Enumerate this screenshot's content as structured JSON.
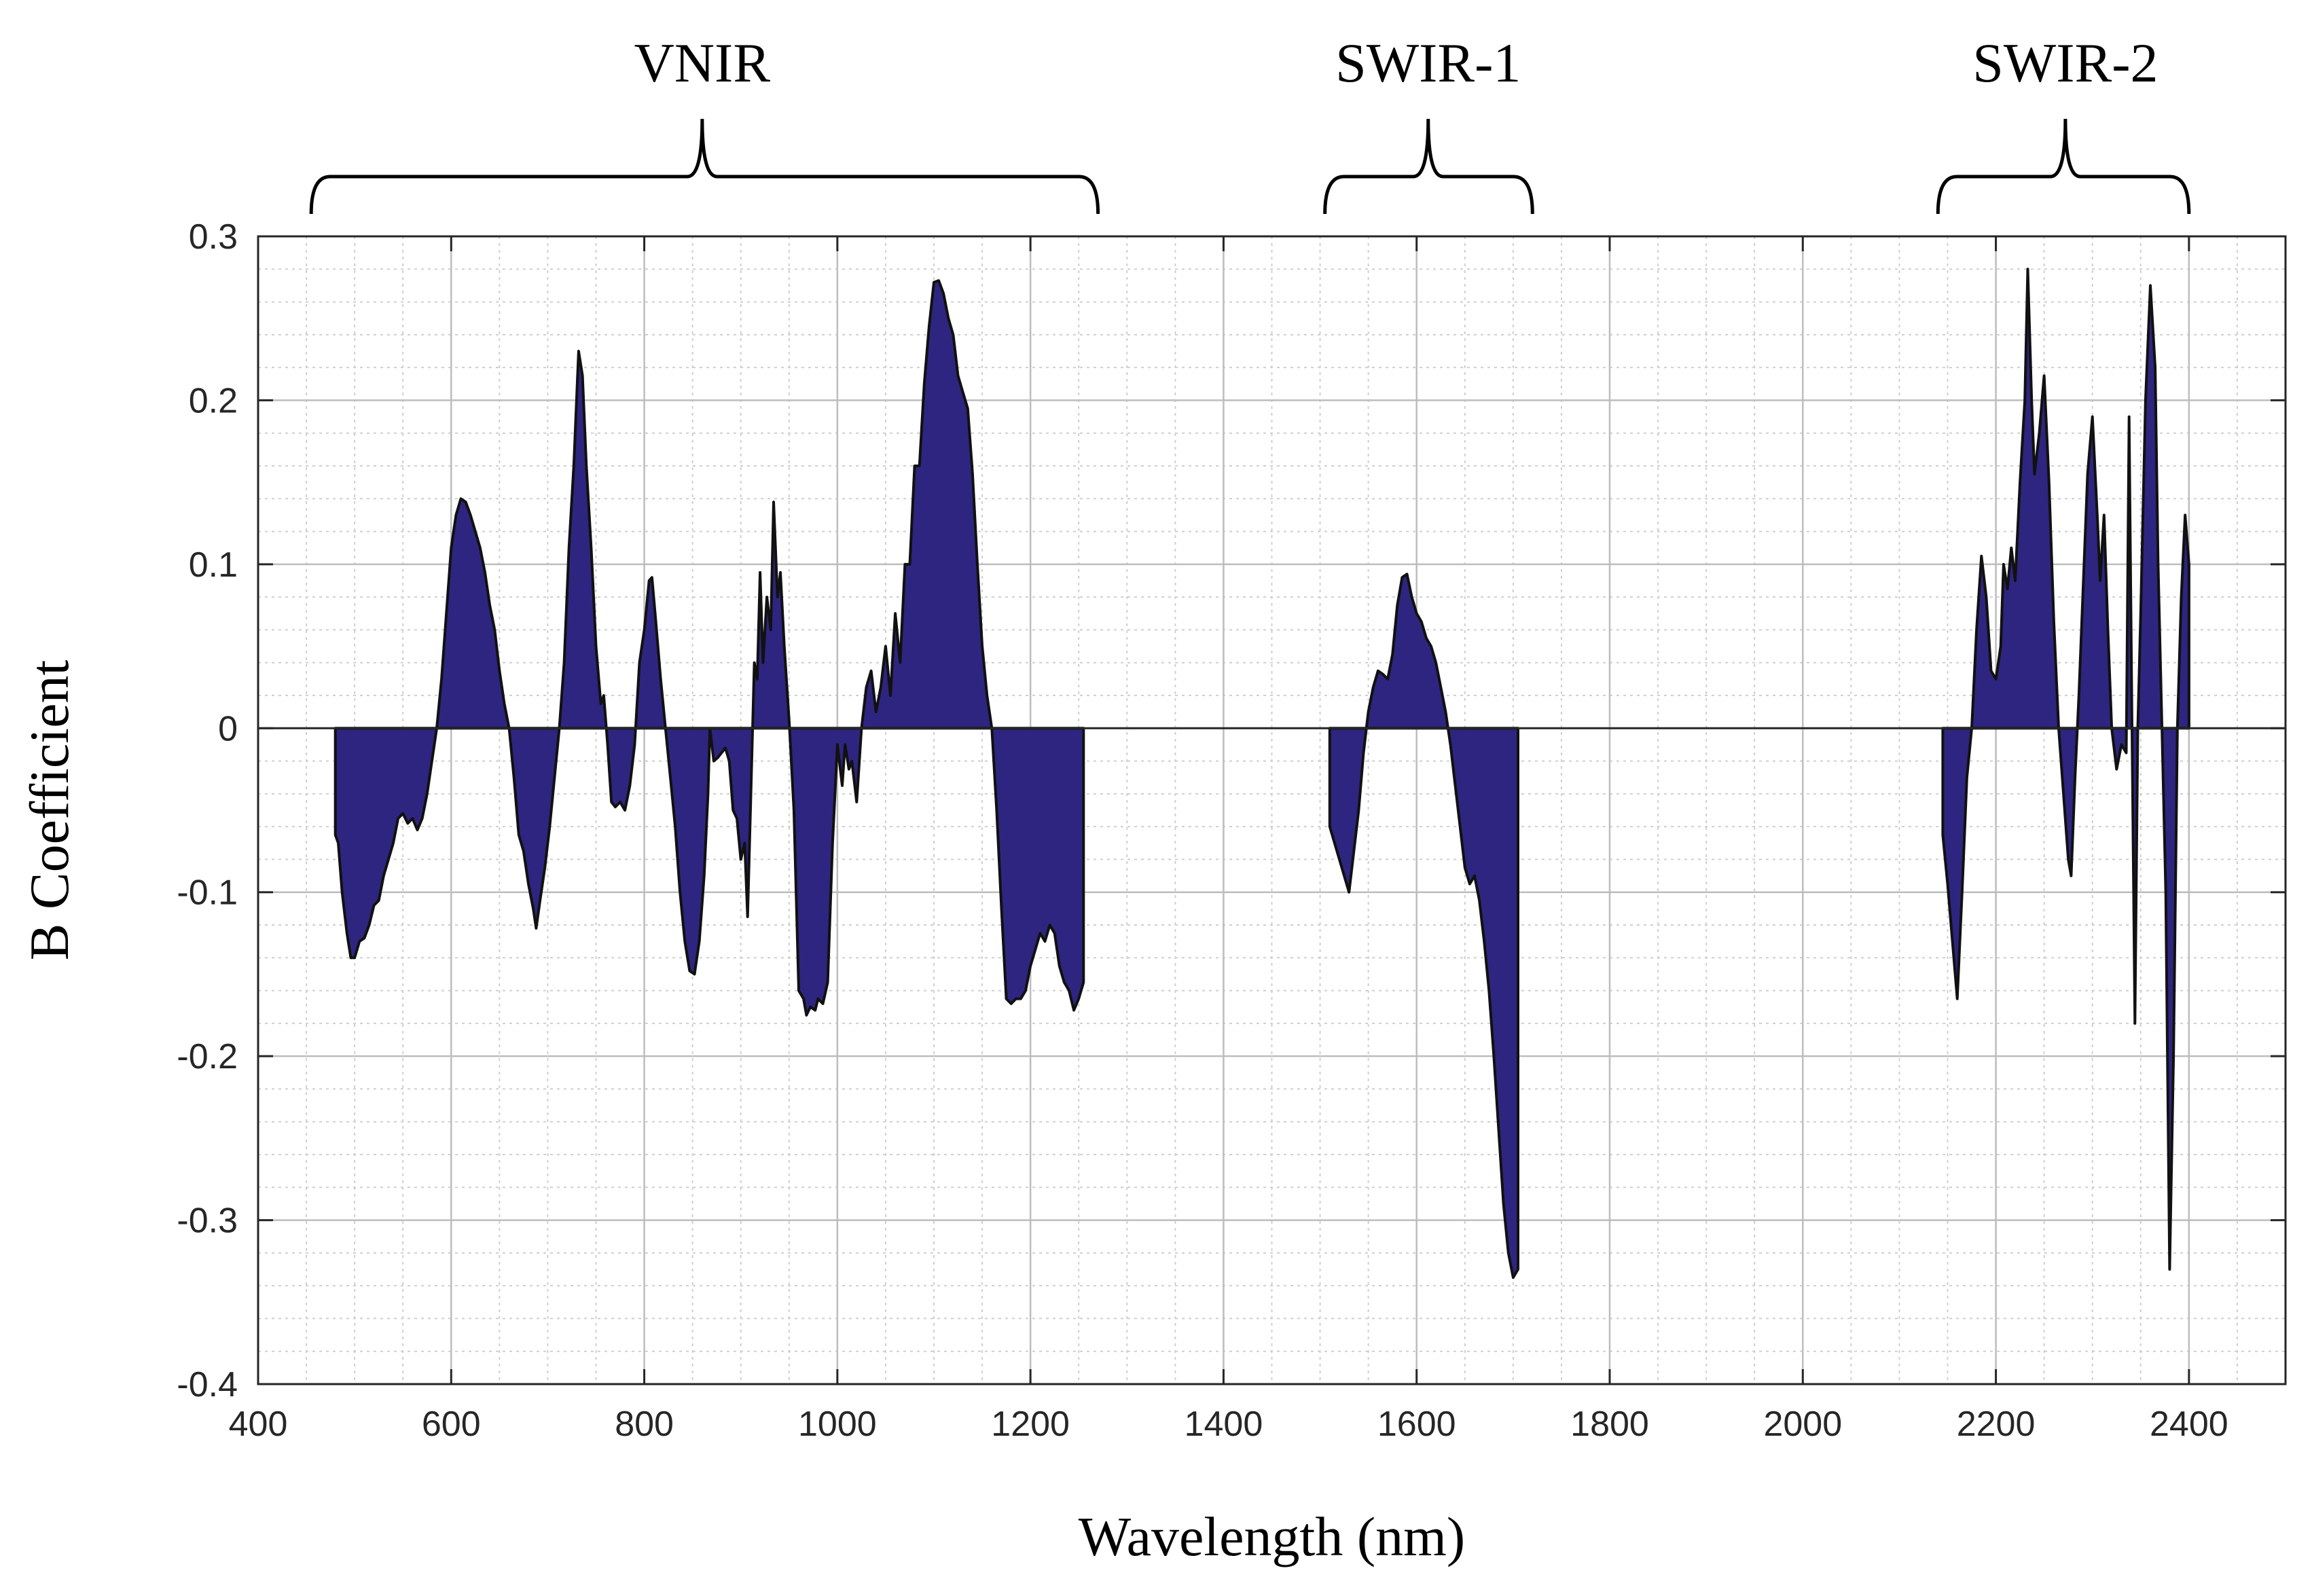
{
  "chart_data": {
    "type": "area",
    "xlabel": "Wavelength (nm)",
    "ylabel": "B Coefficient",
    "xlim": [
      400,
      2500
    ],
    "ylim": [
      -0.4,
      0.3
    ],
    "x_ticks": [
      400,
      600,
      800,
      1000,
      1200,
      1400,
      1600,
      1800,
      2000,
      2200,
      2400
    ],
    "y_ticks": [
      0.3,
      0.2,
      0.1,
      0,
      -0.1,
      -0.2,
      -0.3,
      -0.4
    ],
    "y_tick_labels": [
      "0.3",
      "0.2",
      "0.1",
      "0",
      "-0.1",
      "-0.2",
      "-0.3",
      "-0.4"
    ],
    "grid": true,
    "minor_grid": true,
    "fill_color": "#2e2580",
    "line_color": "#111111",
    "regions": [
      {
        "label": "VNIR",
        "start": 455,
        "end": 1270,
        "center": 860
      },
      {
        "label": "SWIR-1",
        "start": 1505,
        "end": 1720,
        "center": 1612
      },
      {
        "label": "SWIR-2",
        "start": 2140,
        "end": 2400,
        "center": 2272
      }
    ],
    "series": [
      {
        "name": "VNIR",
        "points": [
          [
            480,
            0
          ],
          [
            480,
            -0.065
          ],
          [
            483,
            -0.07
          ],
          [
            487,
            -0.1
          ],
          [
            492,
            -0.125
          ],
          [
            496,
            -0.14
          ],
          [
            500,
            -0.14
          ],
          [
            505,
            -0.13
          ],
          [
            510,
            -0.128
          ],
          [
            515,
            -0.12
          ],
          [
            520,
            -0.108
          ],
          [
            525,
            -0.105
          ],
          [
            530,
            -0.09
          ],
          [
            535,
            -0.08
          ],
          [
            540,
            -0.07
          ],
          [
            545,
            -0.055
          ],
          [
            550,
            -0.052
          ],
          [
            555,
            -0.058
          ],
          [
            560,
            -0.055
          ],
          [
            565,
            -0.062
          ],
          [
            570,
            -0.055
          ],
          [
            575,
            -0.04
          ],
          [
            580,
            -0.02
          ],
          [
            585,
            0
          ],
          [
            590,
            0.03
          ],
          [
            595,
            0.07
          ],
          [
            600,
            0.11
          ],
          [
            605,
            0.13
          ],
          [
            610,
            0.14
          ],
          [
            615,
            0.138
          ],
          [
            620,
            0.13
          ],
          [
            625,
            0.12
          ],
          [
            630,
            0.11
          ],
          [
            635,
            0.095
          ],
          [
            640,
            0.075
          ],
          [
            645,
            0.06
          ],
          [
            650,
            0.035
          ],
          [
            655,
            0.015
          ],
          [
            660,
            0
          ],
          [
            665,
            -0.03
          ],
          [
            670,
            -0.065
          ],
          [
            675,
            -0.075
          ],
          [
            680,
            -0.095
          ],
          [
            685,
            -0.11
          ],
          [
            688,
            -0.122
          ],
          [
            692,
            -0.105
          ],
          [
            697,
            -0.085
          ],
          [
            702,
            -0.06
          ],
          [
            707,
            -0.03
          ],
          [
            712,
            0
          ],
          [
            717,
            0.04
          ],
          [
            722,
            0.11
          ],
          [
            727,
            0.16
          ],
          [
            732,
            0.23
          ],
          [
            736,
            0.215
          ],
          [
            740,
            0.16
          ],
          [
            745,
            0.11
          ],
          [
            750,
            0.05
          ],
          [
            755,
            0.015
          ],
          [
            758,
            0.02
          ],
          [
            762,
            -0.01
          ],
          [
            766,
            -0.045
          ],
          [
            770,
            -0.048
          ],
          [
            775,
            -0.045
          ],
          [
            780,
            -0.05
          ],
          [
            785,
            -0.035
          ],
          [
            790,
            -0.01
          ],
          [
            795,
            0.04
          ],
          [
            800,
            0.06
          ],
          [
            805,
            0.09
          ],
          [
            808,
            0.092
          ],
          [
            812,
            0.065
          ],
          [
            817,
            0.03
          ],
          [
            822,
            0
          ],
          [
            827,
            -0.03
          ],
          [
            832,
            -0.06
          ],
          [
            837,
            -0.1
          ],
          [
            842,
            -0.13
          ],
          [
            847,
            -0.148
          ],
          [
            852,
            -0.15
          ],
          [
            857,
            -0.13
          ],
          [
            862,
            -0.09
          ],
          [
            866,
            -0.04
          ],
          [
            868,
            0
          ],
          [
            872,
            -0.02
          ],
          [
            876,
            -0.018
          ],
          [
            880,
            -0.015
          ],
          [
            884,
            -0.012
          ],
          [
            888,
            -0.02
          ],
          [
            892,
            -0.05
          ],
          [
            896,
            -0.055
          ],
          [
            900,
            -0.08
          ],
          [
            904,
            -0.07
          ],
          [
            907,
            -0.115
          ],
          [
            910,
            -0.05
          ],
          [
            914,
            0.04
          ],
          [
            917,
            0.03
          ],
          [
            920,
            0.095
          ],
          [
            923,
            0.04
          ],
          [
            927,
            0.08
          ],
          [
            931,
            0.06
          ],
          [
            934,
            0.138
          ],
          [
            938,
            0.08
          ],
          [
            941,
            0.095
          ],
          [
            945,
            0.05
          ],
          [
            950,
            0.005
          ],
          [
            955,
            -0.05
          ],
          [
            960,
            -0.16
          ],
          [
            965,
            -0.165
          ],
          [
            968,
            -0.175
          ],
          [
            972,
            -0.17
          ],
          [
            977,
            -0.172
          ],
          [
            980,
            -0.165
          ],
          [
            985,
            -0.168
          ],
          [
            990,
            -0.155
          ],
          [
            995,
            -0.07
          ],
          [
            1000,
            -0.01
          ],
          [
            1005,
            -0.035
          ],
          [
            1008,
            -0.01
          ],
          [
            1012,
            -0.025
          ],
          [
            1015,
            -0.02
          ],
          [
            1020,
            -0.045
          ],
          [
            1025,
            0
          ],
          [
            1030,
            0.025
          ],
          [
            1035,
            0.035
          ],
          [
            1040,
            0.01
          ],
          [
            1045,
            0.025
          ],
          [
            1050,
            0.05
          ],
          [
            1055,
            0.02
          ],
          [
            1060,
            0.07
          ],
          [
            1065,
            0.04
          ],
          [
            1070,
            0.1
          ],
          [
            1075,
            0.1
          ],
          [
            1080,
            0.16
          ],
          [
            1085,
            0.16
          ],
          [
            1090,
            0.21
          ],
          [
            1095,
            0.245
          ],
          [
            1100,
            0.272
          ],
          [
            1105,
            0.273
          ],
          [
            1110,
            0.265
          ],
          [
            1115,
            0.25
          ],
          [
            1120,
            0.24
          ],
          [
            1125,
            0.215
          ],
          [
            1130,
            0.205
          ],
          [
            1135,
            0.195
          ],
          [
            1140,
            0.155
          ],
          [
            1145,
            0.1
          ],
          [
            1150,
            0.05
          ],
          [
            1155,
            0.02
          ],
          [
            1160,
            0
          ],
          [
            1165,
            -0.05
          ],
          [
            1170,
            -0.11
          ],
          [
            1175,
            -0.165
          ],
          [
            1180,
            -0.168
          ],
          [
            1185,
            -0.165
          ],
          [
            1190,
            -0.165
          ],
          [
            1195,
            -0.16
          ],
          [
            1200,
            -0.145
          ],
          [
            1205,
            -0.135
          ],
          [
            1210,
            -0.125
          ],
          [
            1215,
            -0.13
          ],
          [
            1220,
            -0.12
          ],
          [
            1225,
            -0.125
          ],
          [
            1230,
            -0.145
          ],
          [
            1235,
            -0.155
          ],
          [
            1240,
            -0.16
          ],
          [
            1245,
            -0.172
          ],
          [
            1250,
            -0.165
          ],
          [
            1255,
            -0.155
          ],
          [
            1255,
            0
          ]
        ]
      },
      {
        "name": "SWIR-1",
        "points": [
          [
            1510,
            0
          ],
          [
            1510,
            -0.06
          ],
          [
            1515,
            -0.07
          ],
          [
            1520,
            -0.08
          ],
          [
            1525,
            -0.09
          ],
          [
            1530,
            -0.1
          ],
          [
            1535,
            -0.075
          ],
          [
            1540,
            -0.05
          ],
          [
            1545,
            -0.015
          ],
          [
            1550,
            0.01
          ],
          [
            1555,
            0.025
          ],
          [
            1560,
            0.035
          ],
          [
            1565,
            0.033
          ],
          [
            1570,
            0.03
          ],
          [
            1575,
            0.045
          ],
          [
            1580,
            0.075
          ],
          [
            1585,
            0.092
          ],
          [
            1590,
            0.094
          ],
          [
            1595,
            0.08
          ],
          [
            1600,
            0.07
          ],
          [
            1605,
            0.065
          ],
          [
            1610,
            0.055
          ],
          [
            1615,
            0.05
          ],
          [
            1620,
            0.04
          ],
          [
            1625,
            0.025
          ],
          [
            1630,
            0.01
          ],
          [
            1635,
            -0.01
          ],
          [
            1640,
            -0.035
          ],
          [
            1645,
            -0.06
          ],
          [
            1650,
            -0.085
          ],
          [
            1655,
            -0.095
          ],
          [
            1660,
            -0.09
          ],
          [
            1665,
            -0.105
          ],
          [
            1670,
            -0.13
          ],
          [
            1675,
            -0.16
          ],
          [
            1680,
            -0.2
          ],
          [
            1685,
            -0.245
          ],
          [
            1690,
            -0.29
          ],
          [
            1695,
            -0.32
          ],
          [
            1700,
            -0.335
          ],
          [
            1705,
            -0.33
          ],
          [
            1705,
            0
          ]
        ]
      },
      {
        "name": "SWIR-2",
        "points": [
          [
            2145,
            0
          ],
          [
            2145,
            -0.065
          ],
          [
            2150,
            -0.095
          ],
          [
            2155,
            -0.13
          ],
          [
            2160,
            -0.165
          ],
          [
            2165,
            -0.1
          ],
          [
            2170,
            -0.03
          ],
          [
            2175,
            0
          ],
          [
            2180,
            0.06
          ],
          [
            2185,
            0.105
          ],
          [
            2190,
            0.08
          ],
          [
            2195,
            0.035
          ],
          [
            2200,
            0.03
          ],
          [
            2205,
            0.05
          ],
          [
            2208,
            0.1
          ],
          [
            2212,
            0.085
          ],
          [
            2216,
            0.11
          ],
          [
            2220,
            0.09
          ],
          [
            2225,
            0.15
          ],
          [
            2230,
            0.2
          ],
          [
            2233,
            0.28
          ],
          [
            2237,
            0.2
          ],
          [
            2240,
            0.155
          ],
          [
            2245,
            0.18
          ],
          [
            2250,
            0.215
          ],
          [
            2255,
            0.15
          ],
          [
            2260,
            0.065
          ],
          [
            2265,
            0
          ],
          [
            2270,
            -0.04
          ],
          [
            2275,
            -0.08
          ],
          [
            2278,
            -0.09
          ],
          [
            2282,
            -0.03
          ],
          [
            2286,
            0.02
          ],
          [
            2290,
            0.08
          ],
          [
            2295,
            0.155
          ],
          [
            2300,
            0.19
          ],
          [
            2305,
            0.13
          ],
          [
            2308,
            0.09
          ],
          [
            2312,
            0.13
          ],
          [
            2316,
            0.06
          ],
          [
            2320,
            0
          ],
          [
            2325,
            -0.025
          ],
          [
            2330,
            -0.01
          ],
          [
            2335,
            -0.015
          ],
          [
            2338,
            0.19
          ],
          [
            2341,
            0
          ],
          [
            2344,
            -0.18
          ],
          [
            2347,
            0
          ],
          [
            2350,
            0.07
          ],
          [
            2355,
            0.2
          ],
          [
            2360,
            0.27
          ],
          [
            2365,
            0.22
          ],
          [
            2368,
            0.1
          ],
          [
            2372,
            0
          ],
          [
            2376,
            -0.1
          ],
          [
            2380,
            -0.33
          ],
          [
            2384,
            -0.2
          ],
          [
            2388,
            0
          ],
          [
            2392,
            0.08
          ],
          [
            2396,
            0.13
          ],
          [
            2400,
            0.1
          ],
          [
            2400,
            0
          ]
        ]
      }
    ]
  }
}
